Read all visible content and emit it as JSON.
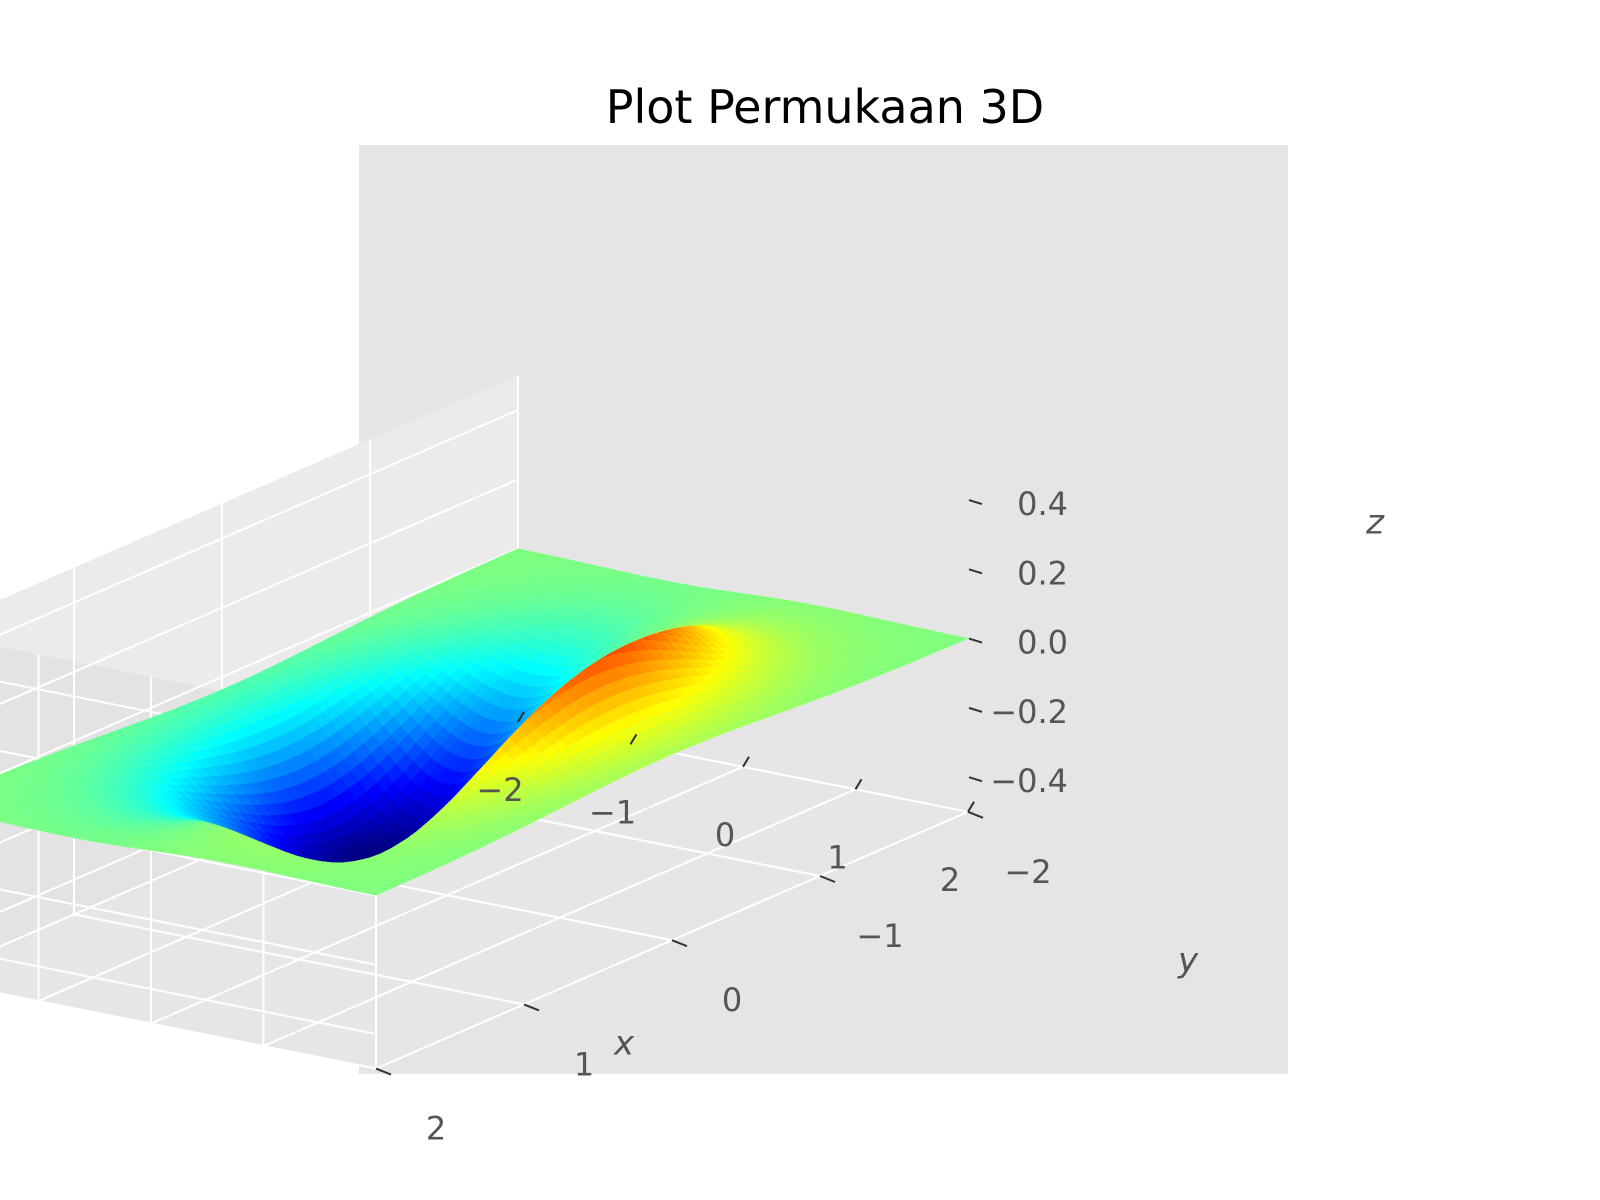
{
  "chart_data": {
    "type": "surface",
    "title": "Plot Permukaan 3D",
    "xlabel": "x",
    "ylabel": "y",
    "zlabel": "z",
    "x_ticks": [
      "−2",
      "−1",
      "0",
      "1",
      "2"
    ],
    "y_ticks": [
      "−2",
      "−1",
      "0",
      "1",
      "2"
    ],
    "z_ticks": [
      "−0.4",
      "−0.2",
      "0.0",
      "0.2",
      "0.4"
    ],
    "xlim": [
      -2,
      2
    ],
    "ylim": [
      -2,
      2
    ],
    "zlim": [
      -0.5,
      0.5
    ],
    "function": "z = x · exp(−x² − y²)",
    "z_min": -0.43,
    "z_max": 0.43,
    "colormap": "jet",
    "grid": true,
    "background": "#e5e5e5"
  }
}
